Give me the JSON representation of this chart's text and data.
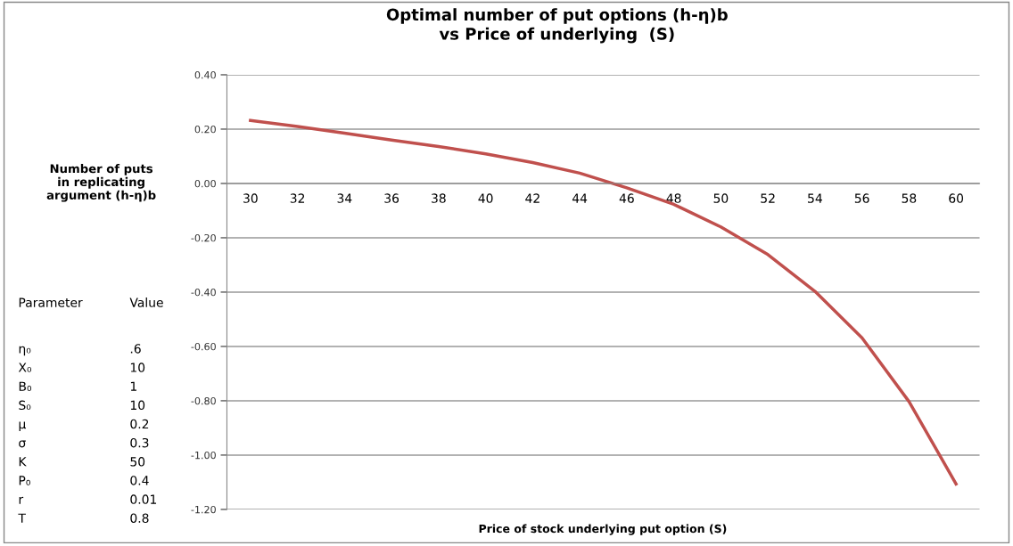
{
  "chart_data": {
    "type": "line",
    "title": "Optimal number of put options (h-η)b\nvs Price of underlying  (S)",
    "xlabel": "Price of stock underlying put option (S)",
    "ylabel": "Number of puts\nin replicating\nargument (h-η)b",
    "categories": [
      "30",
      "32",
      "34",
      "36",
      "38",
      "40",
      "42",
      "44",
      "46",
      "48",
      "50",
      "52",
      "54",
      "56",
      "58",
      "60"
    ],
    "series": [
      {
        "color": "#c0504d",
        "values": [
          0.232,
          0.21,
          0.185,
          0.16,
          0.136,
          0.109,
          0.077,
          0.038,
          -0.016,
          -0.077,
          -0.16,
          -0.262,
          -0.397,
          -0.568,
          -0.803,
          -1.106
        ]
      }
    ],
    "ylim": [
      -1.2,
      0.4
    ],
    "yticks": [
      {
        "value": -1.2,
        "label": "-1.20"
      },
      {
        "value": -1.0,
        "label": "-1.00"
      },
      {
        "value": -0.8,
        "label": "-0.80"
      },
      {
        "value": -0.6,
        "label": "-0.60"
      },
      {
        "value": -0.4,
        "label": "-0.40"
      },
      {
        "value": -0.2,
        "label": "-0.20"
      },
      {
        "value": 0,
        "label": "0.00"
      },
      {
        "value": 0.2,
        "label": "0.20"
      },
      {
        "value": 0.4,
        "label": "0.40"
      }
    ],
    "grid": "y",
    "marker": "none",
    "line_style": "solid",
    "legend": false,
    "annotations": [
      "Parameter",
      "Value",
      "η₀",
      ".6",
      "X₀",
      "10",
      "B₀",
      "1",
      "S₀",
      "10",
      "μ",
      "0.2",
      "σ",
      "0.3",
      "K",
      "50",
      "P₀",
      "0.4",
      "r",
      "0.01",
      "T",
      "0.8"
    ]
  }
}
